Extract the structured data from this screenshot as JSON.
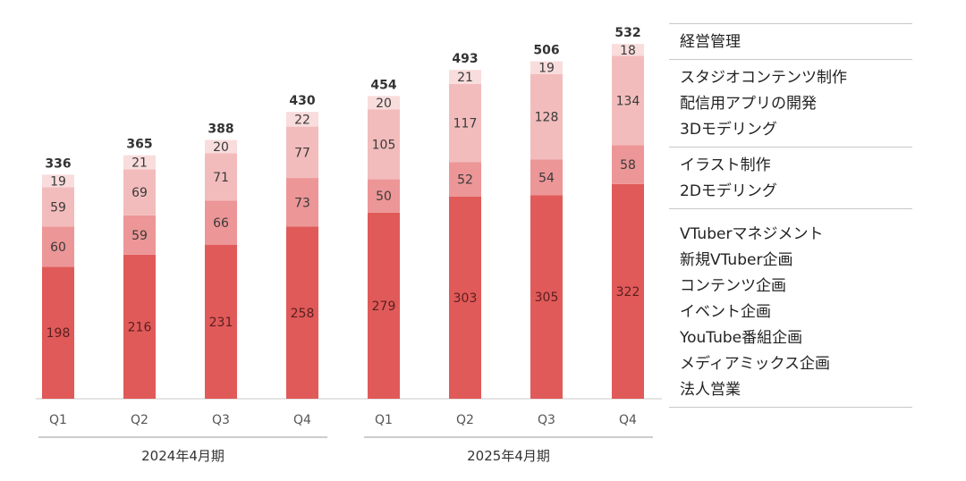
{
  "chart_data": {
    "type": "bar",
    "stacked": true,
    "categories": [
      "Q1",
      "Q2",
      "Q3",
      "Q4",
      "Q1",
      "Q2",
      "Q3",
      "Q4"
    ],
    "periods": [
      {
        "label": "2024年4月期",
        "quarters": [
          0,
          1,
          2,
          3
        ]
      },
      {
        "label": "2025年4月期",
        "quarters": [
          4,
          5,
          6,
          7
        ]
      }
    ],
    "series": [
      {
        "values": [
          198,
          216,
          231,
          258,
          279,
          303,
          305,
          322
        ],
        "color": "#e05a59"
      },
      {
        "values": [
          60,
          59,
          66,
          73,
          50,
          52,
          54,
          58
        ],
        "color": "#ec9697"
      },
      {
        "values": [
          59,
          69,
          71,
          77,
          105,
          117,
          128,
          134
        ],
        "color": "#f3bcbc"
      },
      {
        "values": [
          19,
          21,
          20,
          22,
          20,
          21,
          19,
          18
        ],
        "color": "#f9dcdc"
      }
    ],
    "totals": [
      336,
      365,
      388,
      430,
      454,
      493,
      506,
      532
    ],
    "ylim": [
      0,
      540
    ],
    "grid": false,
    "legend_position": "right"
  },
  "legend": {
    "groups": [
      {
        "items": [
          "経営管理"
        ]
      },
      {
        "items": [
          "スタジオコンテンツ制作",
          "配信用アプリの開発",
          "3Dモデリング"
        ]
      },
      {
        "items": [
          "イラスト制作",
          "2Dモデリング"
        ]
      },
      {
        "items": [
          "VTuberマネジメント",
          "新規VTuber企画",
          "コンテンツ企画",
          "イベント企画",
          "YouTube番組企画",
          "メディアミックス企画",
          "法人営業"
        ]
      }
    ]
  }
}
